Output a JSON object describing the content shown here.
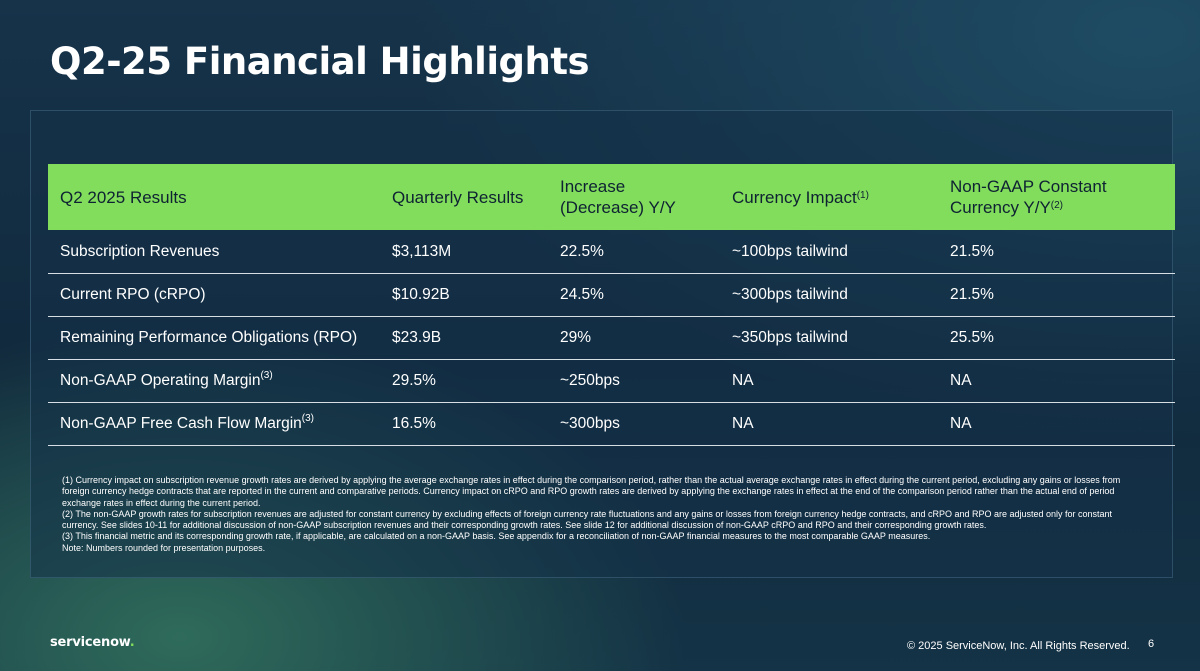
{
  "slide": {
    "title": "Q2-25 Financial Highlights",
    "page_number": "6",
    "copyright": "© 2025 ServiceNow, Inc. All Rights Reserved.",
    "logo_text": "servicenow",
    "logo_dot": "."
  },
  "table": {
    "headers": {
      "col1": "Q2 2025 Results",
      "col2": "Quarterly Results",
      "col3_line1": "Increase",
      "col3_line2": "(Decrease) Y/Y",
      "col4": "Currency Impact",
      "col4_sup": "(1)",
      "col5_line1": "Non-GAAP Constant",
      "col5_line2": "Currency Y/Y",
      "col5_sup": "(2)"
    },
    "rows": [
      {
        "metric": "Subscription Revenues",
        "metric_sup": "",
        "quarterly": "$3,113M",
        "change": "22.5%",
        "currency": "~100bps tailwind",
        "constant": "21.5%"
      },
      {
        "metric": "Current RPO (cRPO)",
        "metric_sup": "",
        "quarterly": "$10.92B",
        "change": "24.5%",
        "currency": "~300bps tailwind",
        "constant": "21.5%"
      },
      {
        "metric": "Remaining Performance Obligations (RPO)",
        "metric_sup": "",
        "quarterly": "$23.9B",
        "change": "29%",
        "currency": "~350bps tailwind",
        "constant": "25.5%"
      },
      {
        "metric": "Non-GAAP Operating Margin",
        "metric_sup": "(3)",
        "quarterly": "29.5%",
        "change": "~250bps",
        "currency": "NA",
        "constant": "NA"
      },
      {
        "metric": "Non-GAAP Free Cash Flow Margin",
        "metric_sup": "(3)",
        "quarterly": "16.5%",
        "change": "~300bps",
        "currency": "NA",
        "constant": "NA"
      }
    ]
  },
  "footnotes": {
    "note1": "(1) Currency impact on subscription revenue growth rates are derived by applying the average exchange rates in effect during the comparison period, rather than the actual average exchange rates in effect during the current period, excluding any gains or losses from foreign currency hedge contracts that are reported in the current and comparative periods. Currency impact on cRPO and RPO growth rates are derived by applying the exchange rates in effect at the end of the comparison period rather than the actual end of period exchange rates in effect during the current period.",
    "note2": "(2) The non-GAAP growth rates for subscription revenues are adjusted for constant currency by excluding effects of foreign currency rate fluctuations and any gains or losses from foreign currency hedge contracts, and cRPO and RPO are adjusted only for constant currency. See slides 10-11 for additional discussion of non-GAAP subscription revenues and their corresponding growth rates. See slide 12 for additional discussion of non-GAAP cRPO and RPO and their corresponding growth rates.",
    "note3": "(3) This financial metric and its corresponding growth rate, if applicable, are calculated on a non-GAAP basis. See appendix for a reconciliation of non-GAAP financial measures to the most comparable GAAP measures.",
    "note4": "Note: Numbers rounded for presentation purposes."
  },
  "colors": {
    "header_green": "#81dd5b",
    "background_navy": "#11293d"
  }
}
